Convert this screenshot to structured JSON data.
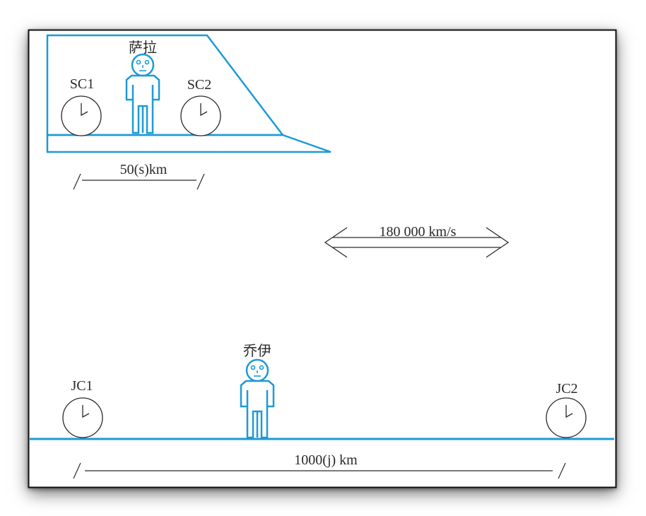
{
  "colors": {
    "blue": "#1e9ad6",
    "ink": "#2a2a2a",
    "frame": "#111111"
  },
  "train": {
    "person_label": "萨拉",
    "clock_left_label": "SC1",
    "clock_right_label": "SC2",
    "length_label": "50(s)km"
  },
  "speed": {
    "label": "180 000 km/s"
  },
  "ground": {
    "person_label": "乔伊",
    "clock_left_label": "JC1",
    "clock_right_label": "JC2",
    "length_label": "1000(j) km"
  }
}
